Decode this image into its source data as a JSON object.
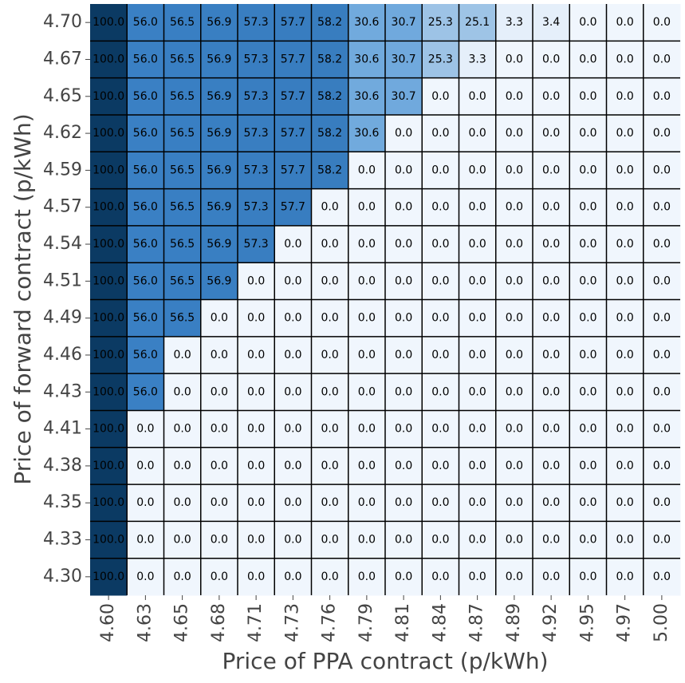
{
  "chart_data": {
    "type": "heatmap",
    "x_label": "Price of PPA contract (p/kWh)",
    "y_label": "Price of forward contract (p/kWh)",
    "x": [
      "4.60",
      "4.63",
      "4.65",
      "4.68",
      "4.71",
      "4.73",
      "4.76",
      "4.79",
      "4.81",
      "4.84",
      "4.87",
      "4.89",
      "4.92",
      "4.95",
      "4.97",
      "5.00"
    ],
    "y": [
      "4.70",
      "4.67",
      "4.65",
      "4.62",
      "4.59",
      "4.57",
      "4.54",
      "4.51",
      "4.49",
      "4.46",
      "4.43",
      "4.41",
      "4.38",
      "4.35",
      "4.33",
      "4.30"
    ],
    "values": [
      [
        100,
        56,
        56.5,
        56.9,
        57.3,
        57.7,
        58.2,
        30.6,
        30.7,
        25.3,
        25.1,
        3.3,
        3.4,
        0,
        0,
        0
      ],
      [
        100,
        56,
        56.5,
        56.9,
        57.3,
        57.7,
        58.2,
        30.6,
        30.7,
        25.3,
        3.3,
        0,
        0,
        0,
        0,
        0
      ],
      [
        100,
        56,
        56.5,
        56.9,
        57.3,
        57.7,
        58.2,
        30.6,
        30.7,
        0,
        0,
        0,
        0,
        0,
        0,
        0
      ],
      [
        100,
        56,
        56.5,
        56.9,
        57.3,
        57.7,
        58.2,
        30.6,
        0,
        0,
        0,
        0,
        0,
        0,
        0,
        0
      ],
      [
        100,
        56,
        56.5,
        56.9,
        57.3,
        57.7,
        58.2,
        0,
        0,
        0,
        0,
        0,
        0,
        0,
        0,
        0
      ],
      [
        100,
        56,
        56.5,
        56.9,
        57.3,
        57.7,
        0,
        0,
        0,
        0,
        0,
        0,
        0,
        0,
        0,
        0
      ],
      [
        100,
        56,
        56.5,
        56.9,
        57.3,
        0,
        0,
        0,
        0,
        0,
        0,
        0,
        0,
        0,
        0,
        0
      ],
      [
        100,
        56,
        56.5,
        56.9,
        0,
        0,
        0,
        0,
        0,
        0,
        0,
        0,
        0,
        0,
        0,
        0
      ],
      [
        100,
        56,
        56.5,
        0,
        0,
        0,
        0,
        0,
        0,
        0,
        0,
        0,
        0,
        0,
        0,
        0
      ],
      [
        100,
        56,
        0,
        0,
        0,
        0,
        0,
        0,
        0,
        0,
        0,
        0,
        0,
        0,
        0,
        0
      ],
      [
        100,
        56,
        0,
        0,
        0,
        0,
        0,
        0,
        0,
        0,
        0,
        0,
        0,
        0,
        0,
        0
      ],
      [
        100,
        0,
        0,
        0,
        0,
        0,
        0,
        0,
        0,
        0,
        0,
        0,
        0,
        0,
        0,
        0
      ],
      [
        100,
        0,
        0,
        0,
        0,
        0,
        0,
        0,
        0,
        0,
        0,
        0,
        0,
        0,
        0,
        0
      ],
      [
        100,
        0,
        0,
        0,
        0,
        0,
        0,
        0,
        0,
        0,
        0,
        0,
        0,
        0,
        0,
        0
      ],
      [
        100,
        0,
        0,
        0,
        0,
        0,
        0,
        0,
        0,
        0,
        0,
        0,
        0,
        0,
        0,
        0
      ],
      [
        100,
        0,
        0,
        0,
        0,
        0,
        0,
        0,
        0,
        0,
        0,
        0,
        0,
        0,
        0,
        0
      ]
    ],
    "value_labels": [
      [
        "100.0",
        "56.0",
        "56.5",
        "56.9",
        "57.3",
        "57.7",
        "58.2",
        "30.6",
        "30.7",
        "25.3",
        "25.1",
        "3.3",
        "3.4",
        "0.0",
        "0.0",
        "0.0"
      ],
      [
        "100.0",
        "56.0",
        "56.5",
        "56.9",
        "57.3",
        "57.7",
        "58.2",
        "30.6",
        "30.7",
        "25.3",
        "3.3",
        "0.0",
        "0.0",
        "0.0",
        "0.0",
        "0.0"
      ],
      [
        "100.0",
        "56.0",
        "56.5",
        "56.9",
        "57.3",
        "57.7",
        "58.2",
        "30.6",
        "30.7",
        "0.0",
        "0.0",
        "0.0",
        "0.0",
        "0.0",
        "0.0",
        "0.0"
      ],
      [
        "100.0",
        "56.0",
        "56.5",
        "56.9",
        "57.3",
        "57.7",
        "58.2",
        "30.6",
        "0.0",
        "0.0",
        "0.0",
        "0.0",
        "0.0",
        "0.0",
        "0.0",
        "0.0"
      ],
      [
        "100.0",
        "56.0",
        "56.5",
        "56.9",
        "57.3",
        "57.7",
        "58.2",
        "0.0",
        "0.0",
        "0.0",
        "0.0",
        "0.0",
        "0.0",
        "0.0",
        "0.0",
        "0.0"
      ],
      [
        "100.0",
        "56.0",
        "56.5",
        "56.9",
        "57.3",
        "57.7",
        "0.0",
        "0.0",
        "0.0",
        "0.0",
        "0.0",
        "0.0",
        "0.0",
        "0.0",
        "0.0",
        "0.0"
      ],
      [
        "100.0",
        "56.0",
        "56.5",
        "56.9",
        "57.3",
        "0.0",
        "0.0",
        "0.0",
        "0.0",
        "0.0",
        "0.0",
        "0.0",
        "0.0",
        "0.0",
        "0.0",
        "0.0"
      ],
      [
        "100.0",
        "56.0",
        "56.5",
        "56.9",
        "0.0",
        "0.0",
        "0.0",
        "0.0",
        "0.0",
        "0.0",
        "0.0",
        "0.0",
        "0.0",
        "0.0",
        "0.0",
        "0.0"
      ],
      [
        "100.0",
        "56.0",
        "56.5",
        "0.0",
        "0.0",
        "0.0",
        "0.0",
        "0.0",
        "0.0",
        "0.0",
        "0.0",
        "0.0",
        "0.0",
        "0.0",
        "0.0",
        "0.0"
      ],
      [
        "100.0",
        "56.0",
        "0.0",
        "0.0",
        "0.0",
        "0.0",
        "0.0",
        "0.0",
        "0.0",
        "0.0",
        "0.0",
        "0.0",
        "0.0",
        "0.0",
        "0.0",
        "0.0"
      ],
      [
        "100.0",
        "56.0",
        "0.0",
        "0.0",
        "0.0",
        "0.0",
        "0.0",
        "0.0",
        "0.0",
        "0.0",
        "0.0",
        "0.0",
        "0.0",
        "0.0",
        "0.0",
        "0.0"
      ],
      [
        "100.0",
        "0.0",
        "0.0",
        "0.0",
        "0.0",
        "0.0",
        "0.0",
        "0.0",
        "0.0",
        "0.0",
        "0.0",
        "0.0",
        "0.0",
        "0.0",
        "0.0",
        "0.0"
      ],
      [
        "100.0",
        "0.0",
        "0.0",
        "0.0",
        "0.0",
        "0.0",
        "0.0",
        "0.0",
        "0.0",
        "0.0",
        "0.0",
        "0.0",
        "0.0",
        "0.0",
        "0.0",
        "0.0"
      ],
      [
        "100.0",
        "0.0",
        "0.0",
        "0.0",
        "0.0",
        "0.0",
        "0.0",
        "0.0",
        "0.0",
        "0.0",
        "0.0",
        "0.0",
        "0.0",
        "0.0",
        "0.0",
        "0.0"
      ],
      [
        "100.0",
        "0.0",
        "0.0",
        "0.0",
        "0.0",
        "0.0",
        "0.0",
        "0.0",
        "0.0",
        "0.0",
        "0.0",
        "0.0",
        "0.0",
        "0.0",
        "0.0",
        "0.0"
      ],
      [
        "100.0",
        "0.0",
        "0.0",
        "0.0",
        "0.0",
        "0.0",
        "0.0",
        "0.0",
        "0.0",
        "0.0",
        "0.0",
        "0.0",
        "0.0",
        "0.0",
        "0.0",
        "0.0"
      ]
    ],
    "color_stops": [
      [
        0,
        "#f0f6fd"
      ],
      [
        25,
        "#9fc4e6"
      ],
      [
        31,
        "#6ea8dc"
      ],
      [
        56,
        "#3a80c4"
      ],
      [
        100,
        "#0b3a63"
      ]
    ]
  }
}
